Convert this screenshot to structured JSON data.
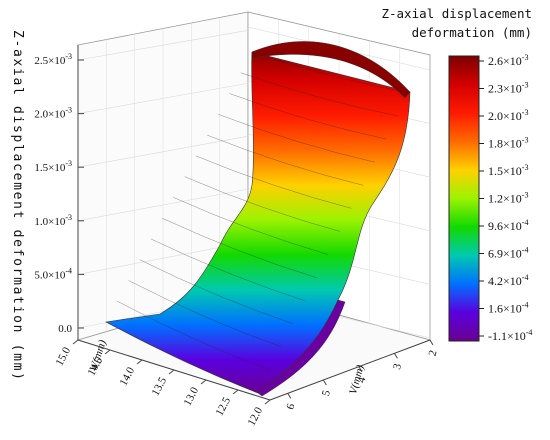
{
  "chart_data": {
    "type": "surface3d",
    "title": "",
    "zlabel": "Z-axial displacement deformation (mm)",
    "xlabel": "W(mm)",
    "ylabel": "V(mm)",
    "colorbar_title": [
      "Z-axial displacement",
      "deformation (mm)"
    ],
    "z_ticks": [
      "0.0",
      "5.0×10-4",
      "1.0×10-3",
      "1.5×10-3",
      "2.0×10-3",
      "2.5×10-3"
    ],
    "z_tick_values": [
      0,
      0.0005,
      0.001,
      0.0015,
      0.002,
      0.0025
    ],
    "zlim": [
      -0.0001,
      0.0026
    ],
    "w_ticks": [
      "15.0",
      "14.5",
      "14.0",
      "13.5",
      "13.0",
      "12.5",
      "12.0"
    ],
    "w_tick_values": [
      15.0,
      14.5,
      14.0,
      13.5,
      13.0,
      12.5,
      12.0
    ],
    "wlim": [
      12.0,
      15.0
    ],
    "v_ticks": [
      "6",
      "5",
      "4",
      "3",
      "2"
    ],
    "v_tick_values": [
      6,
      5,
      4,
      3,
      2
    ],
    "vlim": [
      2,
      6.5
    ],
    "colorbar_ticks": [
      "2.6×10-3",
      "2.3×10-3",
      "2.0×10-3",
      "1.8×10-3",
      "1.5×10-3",
      "1.2×10-3",
      "9.6×10-4",
      "6.9×10-4",
      "4.2×10-4",
      "1.6×10-4",
      "-1.1×10-4"
    ],
    "colorbar_values": [
      0.0026,
      0.0023,
      0.002,
      0.0018,
      0.0015,
      0.0012,
      0.00096,
      0.00069,
      0.00042,
      0.00016,
      -0.00011
    ],
    "colorbar_colors": [
      "#7d0000",
      "#d40000",
      "#ff1a00",
      "#ff6a00",
      "#ffd000",
      "#9cf200",
      "#12d900",
      "#00c9b0",
      "#0070ff",
      "#5a00e0",
      "#6a0090"
    ],
    "surface_profile": {
      "w": [
        15.0,
        14.5,
        14.0,
        13.5,
        13.25,
        13.0,
        12.75,
        12.5,
        12.0
      ],
      "z": [
        0.0,
        8e-05,
        0.00025,
        0.0006,
        0.00095,
        0.00115,
        0.0016,
        0.0021,
        0.00255
      ]
    }
  }
}
